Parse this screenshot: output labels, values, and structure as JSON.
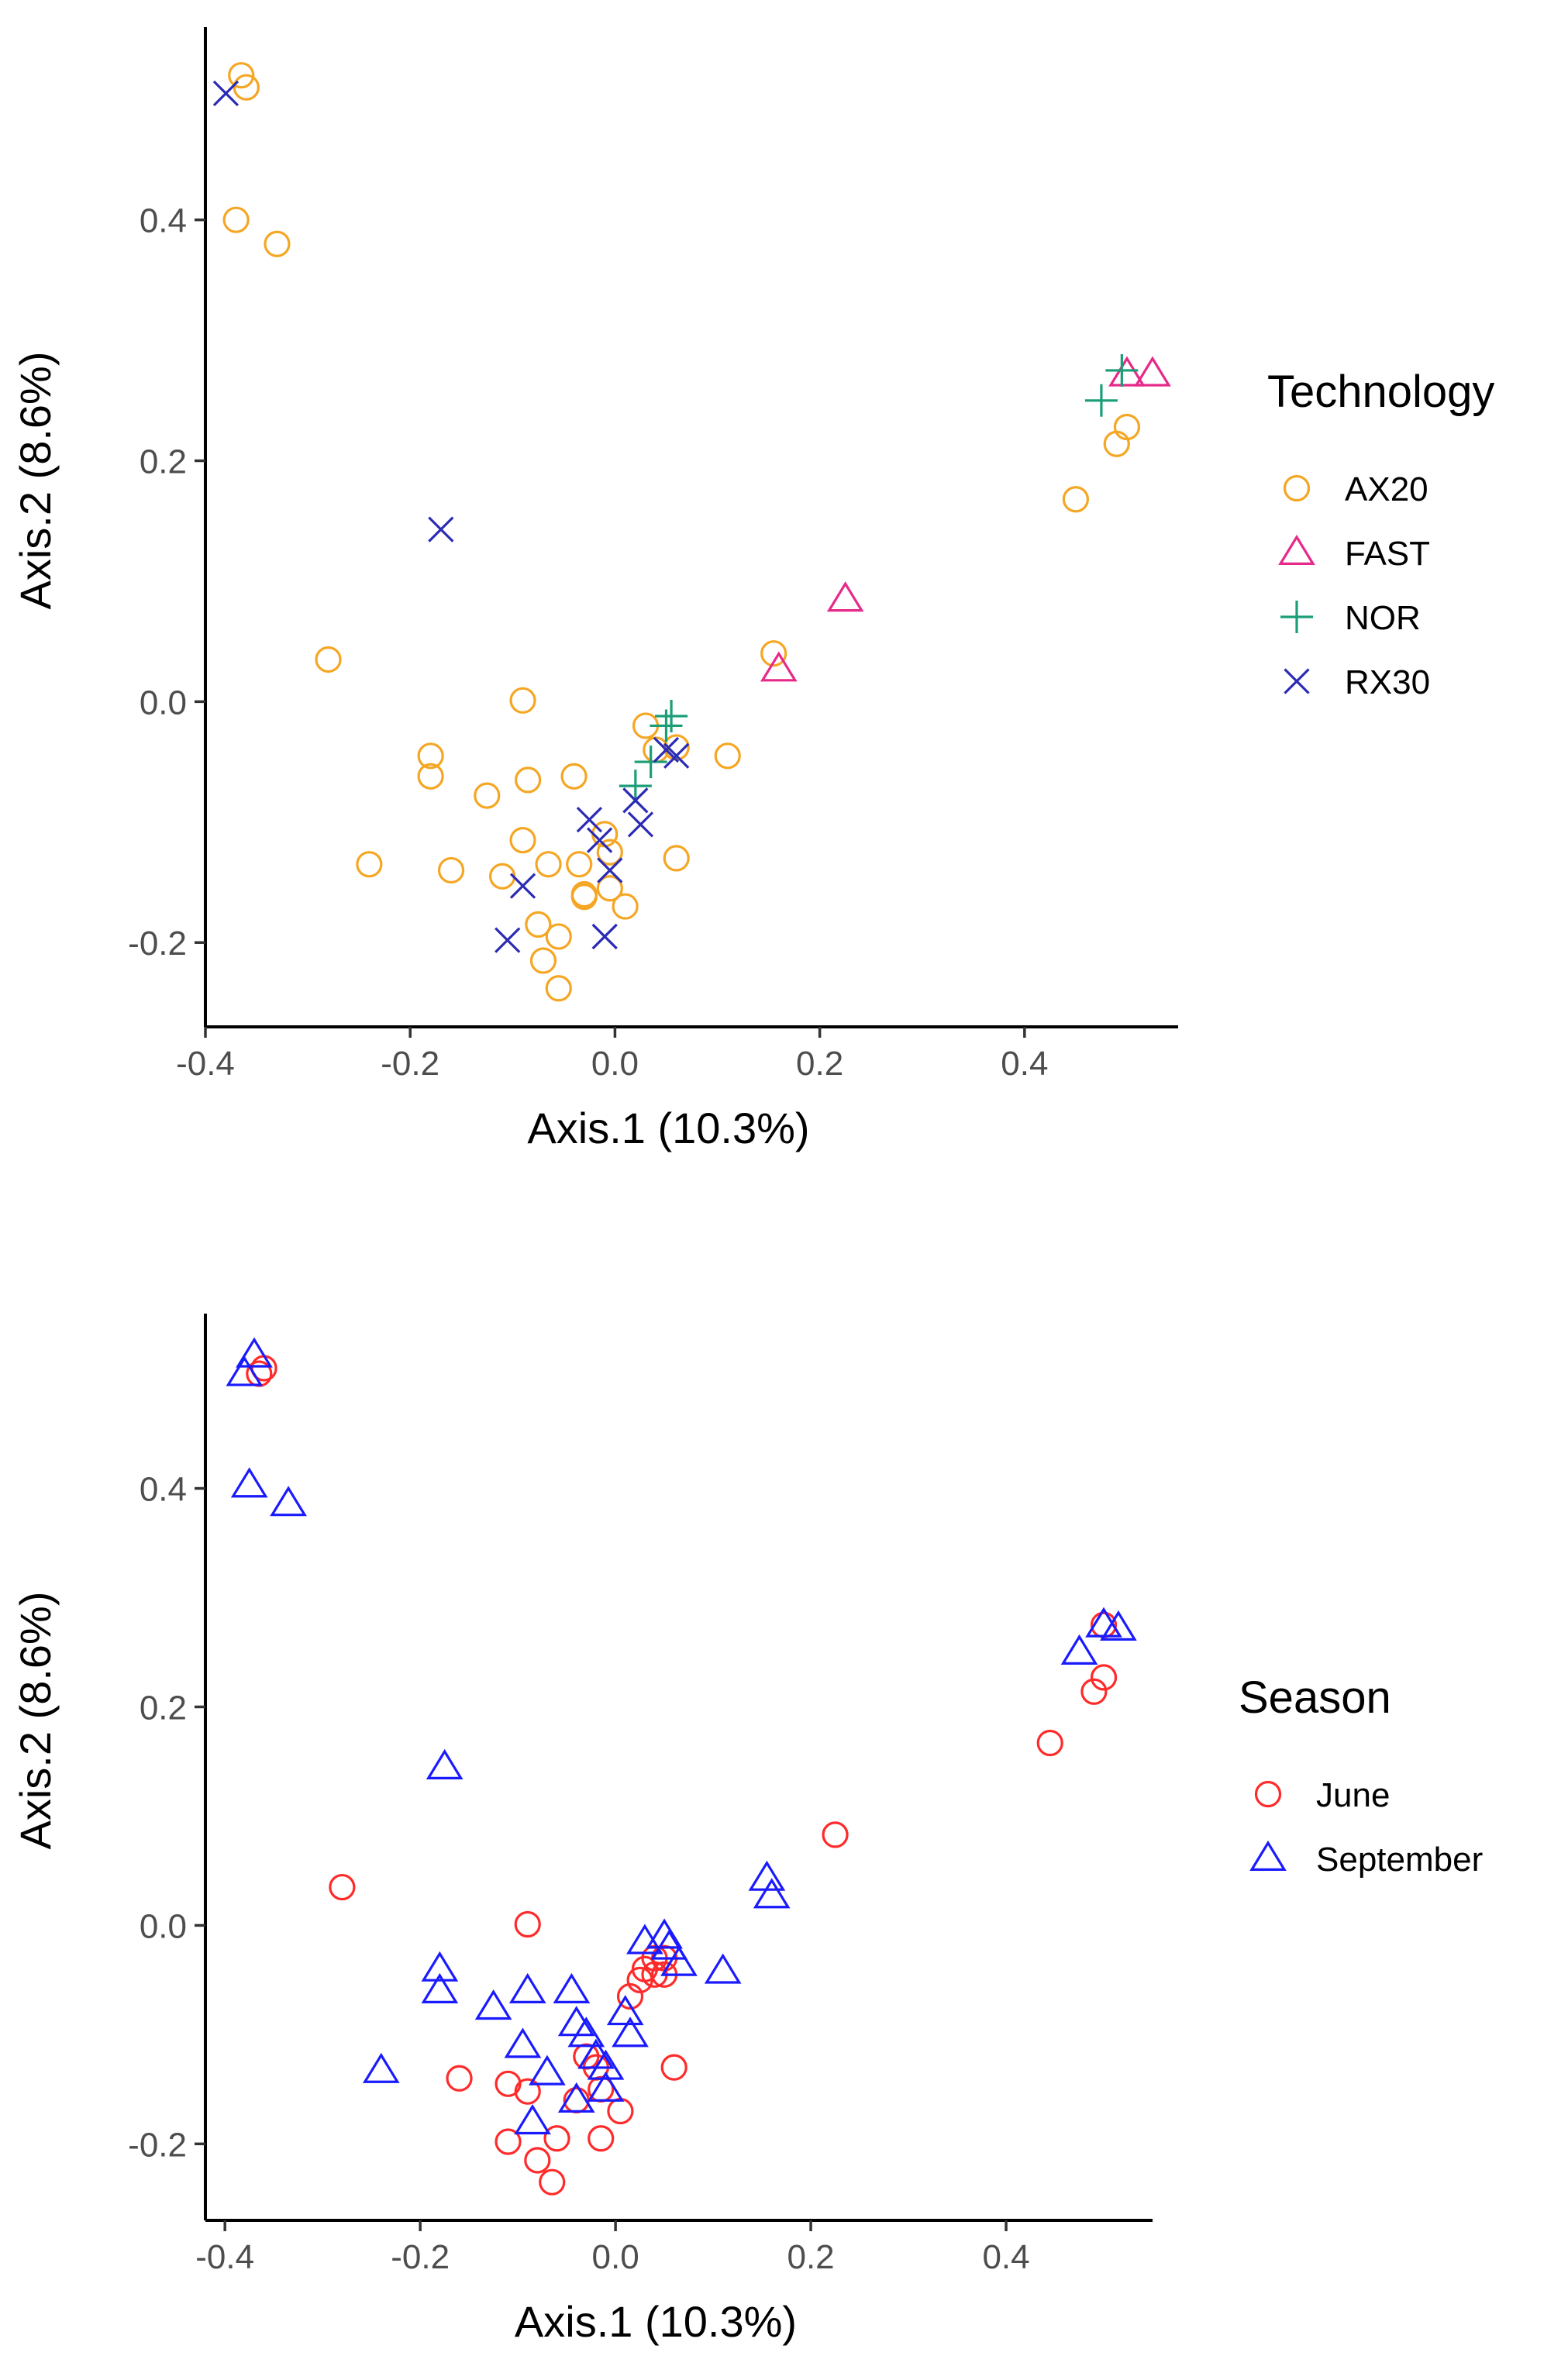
{
  "chart_data": [
    {
      "type": "scatter",
      "title": "",
      "xlabel": "Axis.1  (10.3%)",
      "ylabel": "Axis.2  (8.6%)",
      "xlim": [
        -0.4,
        0.55
      ],
      "ylim": [
        -0.27,
        0.56
      ],
      "xticks": [
        -0.4,
        -0.2,
        0.0,
        0.2,
        0.4
      ],
      "yticks": [
        -0.2,
        0.0,
        0.2,
        0.4
      ],
      "xtick_labels": [
        "-0.4",
        "-0.2",
        "0.0",
        "0.2",
        "0.4"
      ],
      "ytick_labels": [
        "-0.2",
        "0.0",
        "0.2",
        "0.4"
      ],
      "grid": false,
      "legend": {
        "title": "Technology",
        "position": "right"
      },
      "series": [
        {
          "name": "AX20",
          "color": "#f5a623",
          "shape": "circle",
          "points": [
            [
              -0.365,
              0.52
            ],
            [
              -0.36,
              0.51
            ],
            [
              -0.37,
              0.4
            ],
            [
              -0.33,
              0.38
            ],
            [
              -0.28,
              0.035
            ],
            [
              -0.24,
              -0.135
            ],
            [
              -0.18,
              -0.045
            ],
            [
              -0.18,
              -0.062
            ],
            [
              -0.16,
              -0.14
            ],
            [
              -0.125,
              -0.078
            ],
            [
              -0.11,
              -0.145
            ],
            [
              -0.09,
              0.001
            ],
            [
              -0.085,
              -0.065
            ],
            [
              -0.09,
              -0.115
            ],
            [
              -0.075,
              -0.185
            ],
            [
              -0.07,
              -0.215
            ],
            [
              -0.065,
              -0.135
            ],
            [
              -0.055,
              -0.195
            ],
            [
              -0.055,
              -0.238
            ],
            [
              -0.04,
              -0.062
            ],
            [
              -0.035,
              -0.135
            ],
            [
              -0.03,
              -0.16
            ],
            [
              -0.03,
              -0.162
            ],
            [
              -0.01,
              -0.11
            ],
            [
              -0.005,
              -0.125
            ],
            [
              -0.005,
              -0.155
            ],
            [
              0.01,
              -0.17
            ],
            [
              0.03,
              -0.02
            ],
            [
              0.04,
              -0.04
            ],
            [
              0.06,
              -0.038
            ],
            [
              0.06,
              -0.13
            ],
            [
              0.11,
              -0.045
            ],
            [
              0.155,
              0.04
            ],
            [
              0.45,
              0.168
            ],
            [
              0.49,
              0.214
            ],
            [
              0.5,
              0.228
            ]
          ]
        },
        {
          "name": "FAST",
          "color": "#e7298a",
          "shape": "triangle",
          "points": [
            [
              0.16,
              0.027
            ],
            [
              0.225,
              0.085
            ],
            [
              0.5,
              0.272
            ],
            [
              0.525,
              0.272
            ]
          ]
        },
        {
          "name": "NOR",
          "color": "#1b9e77",
          "shape": "plus",
          "points": [
            [
              0.02,
              -0.07
            ],
            [
              0.035,
              -0.05
            ],
            [
              0.05,
              -0.02
            ],
            [
              0.055,
              -0.012
            ],
            [
              0.475,
              0.25
            ],
            [
              0.495,
              0.275
            ]
          ]
        },
        {
          "name": "RX30",
          "color": "#2b2bb5",
          "shape": "cross",
          "points": [
            [
              -0.38,
              0.505
            ],
            [
              -0.17,
              0.143
            ],
            [
              -0.09,
              -0.153
            ],
            [
              -0.105,
              -0.198
            ],
            [
              -0.025,
              -0.098
            ],
            [
              -0.015,
              -0.115
            ],
            [
              -0.005,
              -0.14
            ],
            [
              -0.01,
              -0.195
            ],
            [
              0.02,
              -0.082
            ],
            [
              0.025,
              -0.102
            ],
            [
              0.05,
              -0.04
            ],
            [
              0.06,
              -0.045
            ]
          ]
        }
      ]
    },
    {
      "type": "scatter",
      "title": "",
      "xlabel": "Axis.1  (10.3%)",
      "ylabel": "Axis.2  (8.6%)",
      "xlim": [
        -0.42,
        0.55
      ],
      "ylim": [
        -0.27,
        0.56
      ],
      "xticks": [
        -0.4,
        -0.2,
        0.0,
        0.2,
        0.4
      ],
      "yticks": [
        -0.2,
        0.0,
        0.2,
        0.4
      ],
      "xtick_labels": [
        "-0.4",
        "-0.2",
        "0.0",
        "0.2",
        "0.4"
      ],
      "ytick_labels": [
        "-0.2",
        "0.0",
        "0.2",
        "0.4"
      ],
      "grid": false,
      "legend": {
        "title": "Season",
        "position": "right"
      },
      "series": [
        {
          "name": "June",
          "color": "#ff2a2a",
          "shape": "circle",
          "points": [
            [
              -0.36,
              0.51
            ],
            [
              -0.365,
              0.505
            ],
            [
              -0.28,
              0.035
            ],
            [
              -0.16,
              -0.14
            ],
            [
              -0.11,
              -0.145
            ],
            [
              -0.11,
              -0.198
            ],
            [
              -0.09,
              0.001
            ],
            [
              -0.09,
              -0.152
            ],
            [
              -0.08,
              -0.215
            ],
            [
              -0.065,
              -0.235
            ],
            [
              -0.06,
              -0.195
            ],
            [
              -0.04,
              -0.16
            ],
            [
              -0.03,
              -0.12
            ],
            [
              -0.02,
              -0.13
            ],
            [
              -0.015,
              -0.15
            ],
            [
              -0.015,
              -0.195
            ],
            [
              0.005,
              -0.17
            ],
            [
              0.015,
              -0.065
            ],
            [
              0.025,
              -0.05
            ],
            [
              0.03,
              -0.04
            ],
            [
              0.04,
              -0.03
            ],
            [
              0.04,
              -0.045
            ],
            [
              0.05,
              -0.03
            ],
            [
              0.05,
              -0.045
            ],
            [
              0.06,
              -0.13
            ],
            [
              0.225,
              0.083
            ],
            [
              0.445,
              0.167
            ],
            [
              0.49,
              0.214
            ],
            [
              0.5,
              0.227
            ],
            [
              0.5,
              0.275
            ]
          ]
        },
        {
          "name": "September",
          "color": "#1a1aff",
          "shape": "triangle",
          "points": [
            [
              -0.38,
              0.505
            ],
            [
              -0.37,
              0.522
            ],
            [
              -0.375,
              0.403
            ],
            [
              -0.335,
              0.386
            ],
            [
              -0.24,
              -0.133
            ],
            [
              -0.18,
              -0.04
            ],
            [
              -0.18,
              -0.06
            ],
            [
              -0.175,
              0.145
            ],
            [
              -0.125,
              -0.075
            ],
            [
              -0.095,
              -0.11
            ],
            [
              -0.09,
              -0.06
            ],
            [
              -0.085,
              -0.18
            ],
            [
              -0.07,
              -0.135
            ],
            [
              -0.045,
              -0.06
            ],
            [
              -0.04,
              -0.09
            ],
            [
              -0.04,
              -0.16
            ],
            [
              -0.03,
              -0.1
            ],
            [
              -0.02,
              -0.12
            ],
            [
              -0.01,
              -0.13
            ],
            [
              -0.01,
              -0.15
            ],
            [
              0.01,
              -0.08
            ],
            [
              0.015,
              -0.1
            ],
            [
              0.03,
              -0.015
            ],
            [
              0.05,
              -0.01
            ],
            [
              0.055,
              -0.02
            ],
            [
              0.065,
              -0.035
            ],
            [
              0.11,
              -0.042
            ],
            [
              0.155,
              0.043
            ],
            [
              0.16,
              0.027
            ],
            [
              0.475,
              0.25
            ],
            [
              0.5,
              0.275
            ],
            [
              0.515,
              0.272
            ]
          ]
        }
      ]
    }
  ]
}
